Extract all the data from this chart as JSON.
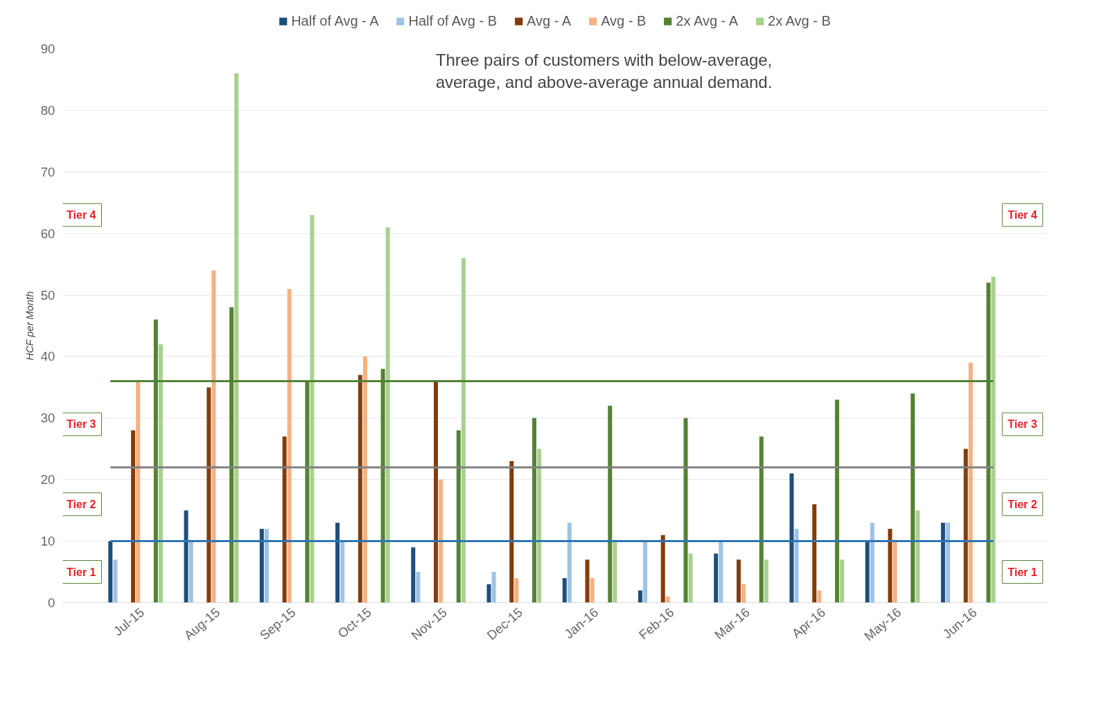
{
  "chart_data": {
    "type": "bar",
    "categories": [
      "Jul-15",
      "Aug-15",
      "Sep-15",
      "Oct-15",
      "Nov-15",
      "Dec-15",
      "Jan-16",
      "Feb-16",
      "Mar-16",
      "Apr-16",
      "May-16",
      "Jun-16"
    ],
    "series": [
      {
        "name": "Half of Avg - A",
        "color": "#1f4e79",
        "values": [
          10,
          15,
          12,
          13,
          9,
          3,
          4,
          2,
          8,
          21,
          10,
          13
        ]
      },
      {
        "name": "Half of Avg - B",
        "color": "#9dc3e6",
        "values": [
          7,
          10,
          12,
          10,
          5,
          5,
          13,
          10,
          10,
          12,
          13,
          13
        ]
      },
      {
        "name": "Avg - A",
        "color": "#843c0c",
        "values": [
          28,
          35,
          27,
          37,
          36,
          23,
          7,
          11,
          7,
          16,
          12,
          25
        ]
      },
      {
        "name": "Avg - B",
        "color": "#f4b183",
        "values": [
          36,
          54,
          51,
          40,
          20,
          4,
          4,
          1,
          3,
          2,
          10,
          39
        ]
      },
      {
        "name": "2x Avg - A",
        "color": "#548235",
        "values": [
          46,
          48,
          36,
          38,
          28,
          30,
          32,
          30,
          27,
          33,
          34,
          52
        ]
      },
      {
        "name": "2x Avg - B",
        "color": "#a9d18e",
        "values": [
          42,
          86,
          63,
          61,
          56,
          25,
          10,
          8,
          7,
          7,
          15,
          53
        ]
      }
    ],
    "ylabel": "HCF per Month",
    "ylim": [
      0,
      90
    ],
    "yticks": [
      0,
      10,
      20,
      30,
      40,
      50,
      60,
      70,
      80,
      90
    ],
    "grid": "y",
    "legend": "top",
    "ref_lines": [
      {
        "axis": "y",
        "value": 10,
        "color": "#2e75b6"
      },
      {
        "axis": "y",
        "value": 22,
        "color": "#808080"
      },
      {
        "axis": "y",
        "value": 36,
        "color": "#548235"
      }
    ],
    "annotations": [
      "Three pairs of customers with below-average,\naverage, and above-average annual demand.",
      "Tier 1",
      "Tier 2",
      "Tier 3",
      "Tier 4",
      "Tier 1",
      "Tier 2",
      "Tier 3",
      "Tier 4"
    ]
  }
}
